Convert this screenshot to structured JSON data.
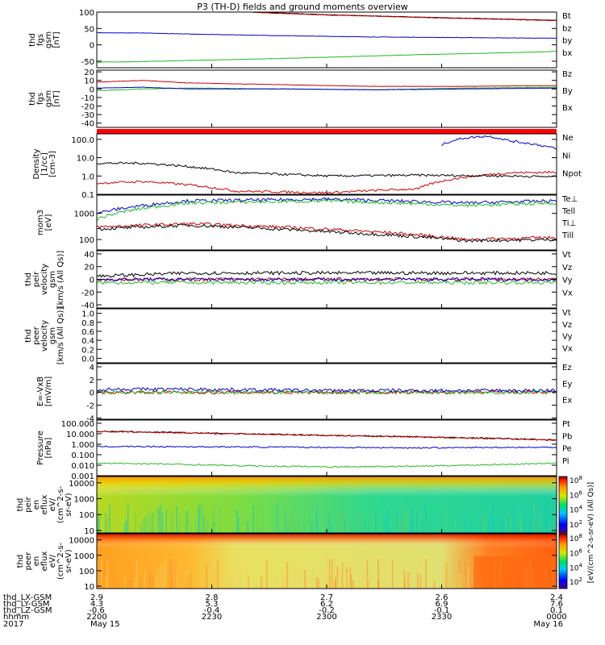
{
  "title": "P3 (TH-D) fields and ground moments overview",
  "chart_data": [
    {
      "type": "line",
      "ylabel": [
        "thd",
        "fgs",
        "gsm",
        "[nT]"
      ],
      "ylim": [
        -70,
        100
      ],
      "yticks": [
        {
          "v": 100,
          "label": "100"
        },
        {
          "v": 50,
          "label": "50"
        },
        {
          "v": 0,
          "label": "0"
        },
        {
          "v": -50,
          "label": "-50"
        }
      ],
      "series": [
        {
          "name": "Bt",
          "color": "#000000",
          "x": [
            0.34,
            0.5,
            0.75,
            1.0
          ],
          "y": [
            100,
            92,
            83,
            75
          ]
        },
        {
          "name": "bz",
          "color": "#cc0000",
          "x": [
            0.34,
            0.5,
            0.75,
            1.0
          ],
          "y": [
            99,
            91,
            82,
            74
          ]
        },
        {
          "name": "by",
          "color": "#22bb22",
          "x": [
            0,
            0.1,
            0.3,
            0.5,
            0.7,
            0.9,
            1.0
          ],
          "y": [
            -53,
            -51,
            -45,
            -38,
            -30,
            -24,
            -20
          ]
        },
        {
          "name": "bx",
          "color": "#0000cc",
          "x": [
            0,
            0.1,
            0.2,
            0.4,
            0.6,
            0.8,
            1.0
          ],
          "y": [
            37,
            36,
            33,
            28,
            24,
            22,
            20
          ]
        }
      ]
    },
    {
      "type": "line",
      "ylabel": [
        "thd",
        "fgs",
        "gsm",
        "[nT]"
      ],
      "ylim": [
        -45,
        22
      ],
      "yticks": [
        {
          "v": 20,
          "label": "20"
        },
        {
          "v": 10,
          "label": "10"
        },
        {
          "v": 0,
          "label": "0"
        },
        {
          "v": -10,
          "label": "-10"
        },
        {
          "v": -20,
          "label": "-20"
        },
        {
          "v": -30,
          "label": "-30"
        },
        {
          "v": -40,
          "label": "-40"
        }
      ],
      "series": [
        {
          "name": "Bz",
          "color": "#cc0000",
          "x": [
            0,
            0.1,
            0.2,
            0.4,
            0.6,
            0.8,
            1.0
          ],
          "y": [
            8,
            10,
            7,
            5,
            3,
            3,
            4
          ]
        },
        {
          "name": "By",
          "color": "#22bb22",
          "x": [
            0,
            0.1,
            0.2,
            0.4,
            0.6,
            0.8,
            1.0
          ],
          "y": [
            -2,
            0,
            1,
            0,
            -1,
            1,
            2
          ]
        },
        {
          "name": "Bx",
          "color": "#0000cc",
          "x": [
            0,
            0.1,
            0.2,
            0.4,
            0.6,
            0.8,
            1.0
          ],
          "y": [
            1,
            2,
            0,
            0,
            -1,
            0,
            1
          ]
        }
      ]
    },
    {
      "type": "line",
      "ylabel": [
        "Density",
        "[1/cc]",
        "[cm-3]"
      ],
      "ylim": [
        0.1,
        200
      ],
      "log": true,
      "yticks": [
        {
          "v": 100,
          "label": "100.0"
        },
        {
          "v": 10,
          "label": "10.0"
        },
        {
          "v": 1,
          "label": "1.0"
        },
        {
          "v": 0.1,
          "label": "0.1"
        }
      ],
      "series": [
        {
          "name": "Ne",
          "color": "#cc0000",
          "x": [
            0,
            0.1,
            0.3,
            0.5,
            0.7,
            0.9,
            1.0
          ],
          "y": [
            0.4,
            0.5,
            0.15,
            0.12,
            0.2,
            1.5,
            1.6
          ]
        },
        {
          "name": "Ni",
          "color": "#000000",
          "x": [
            0,
            0.1,
            0.3,
            0.5,
            0.7,
            0.9,
            1.0
          ],
          "y": [
            5,
            5,
            1.5,
            1.0,
            1.1,
            1.0,
            0.9
          ]
        },
        {
          "name": "Npot",
          "color": "#0000cc",
          "x": [
            0.75,
            0.8,
            0.85,
            0.9,
            1.0
          ],
          "y": [
            50,
            120,
            150,
            80,
            30
          ]
        }
      ]
    },
    {
      "type": "line",
      "ylabel": [
        "mom3",
        "[eV]"
      ],
      "ylim": [
        40,
        5000
      ],
      "log": true,
      "yticks": [
        {
          "v": 1000,
          "label": "1000"
        },
        {
          "v": 100,
          "label": "100"
        }
      ],
      "series": [
        {
          "name": "Te⊥",
          "color": "#cc0000",
          "x": [
            0,
            0.2,
            0.5,
            0.8,
            1.0
          ],
          "y": [
            300,
            400,
            250,
            100,
            120
          ]
        },
        {
          "name": "Tell",
          "color": "#000000",
          "x": [
            0,
            0.2,
            0.5,
            0.8,
            1.0
          ],
          "y": [
            250,
            350,
            200,
            90,
            100
          ]
        },
        {
          "name": "Ti⊥",
          "color": "#0000cc",
          "x": [
            0,
            0.2,
            0.5,
            0.8,
            1.0
          ],
          "y": [
            1000,
            3000,
            3500,
            2500,
            3000
          ]
        },
        {
          "name": "Till",
          "color": "#22bb22",
          "x": [
            0,
            0.2,
            0.5,
            0.8,
            1.0
          ],
          "y": [
            600,
            2500,
            3000,
            2000,
            2500
          ]
        }
      ]
    },
    {
      "type": "line",
      "ylabel": [
        "thd",
        "peir",
        "velocity",
        "gsm",
        "[km/s (All Qs)]"
      ],
      "ylim": [
        -45,
        45
      ],
      "yticks": [
        {
          "v": 40,
          "label": "40"
        },
        {
          "v": 20,
          "label": "20"
        },
        {
          "v": 0,
          "label": "0"
        },
        {
          "v": -20,
          "label": "-20"
        },
        {
          "v": -40,
          "label": "-40"
        }
      ],
      "series": [
        {
          "name": "Vt",
          "color": "#000000",
          "x": [
            0,
            0.2,
            0.5,
            0.8,
            1.0
          ],
          "y": [
            5,
            10,
            10,
            10,
            10
          ]
        },
        {
          "name": "Vz",
          "color": "#cc0000",
          "x": [
            0,
            0.2,
            0.5,
            0.8,
            1.0
          ],
          "y": [
            0,
            0,
            0,
            0,
            0
          ]
        },
        {
          "name": "Vy",
          "color": "#22bb22",
          "x": [
            0,
            0.2,
            0.5,
            0.8,
            1.0
          ],
          "y": [
            -5,
            -5,
            -5,
            -5,
            -5
          ]
        },
        {
          "name": "Vx",
          "color": "#0000cc",
          "x": [
            0,
            0.2,
            0.5,
            0.8,
            1.0
          ],
          "y": [
            0,
            0,
            0,
            0,
            0
          ]
        }
      ]
    },
    {
      "type": "line",
      "ylabel": [
        "thd",
        "peer",
        "velocity",
        "gsm",
        "[km/s (All Qs)]"
      ],
      "ylim": [
        -0.1,
        1.1
      ],
      "yticks": [
        {
          "v": 1.0,
          "label": "1.0"
        },
        {
          "v": 0.8,
          "label": "0.8"
        },
        {
          "v": 0.6,
          "label": "0.6"
        },
        {
          "v": 0.4,
          "label": "0.4"
        },
        {
          "v": 0.2,
          "label": "0.2"
        },
        {
          "v": 0.0,
          "label": "0.0"
        }
      ],
      "series": [
        {
          "name": "Vt",
          "color": "#000000",
          "x": [],
          "y": []
        },
        {
          "name": "Vz",
          "color": "#cc0000",
          "x": [],
          "y": []
        },
        {
          "name": "Vy",
          "color": "#22bb22",
          "x": [],
          "y": []
        },
        {
          "name": "Vx",
          "color": "#0000cc",
          "x": [],
          "y": []
        }
      ]
    },
    {
      "type": "line",
      "ylabel": [
        "E=-VxB",
        "[mV/m]"
      ],
      "ylim": [
        -4.2,
        4.5
      ],
      "yticks": [
        {
          "v": 4,
          "label": "4"
        },
        {
          "v": 2,
          "label": "2"
        },
        {
          "v": 0,
          "label": "0"
        },
        {
          "v": -2,
          "label": "-2"
        },
        {
          "v": -4,
          "label": "-4"
        }
      ],
      "series": [
        {
          "name": "Ez",
          "color": "#cc0000",
          "x": [
            0,
            0.2,
            0.5,
            0.8,
            1.0
          ],
          "y": [
            0,
            0,
            0,
            0,
            0
          ]
        },
        {
          "name": "Ey",
          "color": "#22bb22",
          "x": [
            0,
            0.2,
            0.5,
            0.8,
            1.0
          ],
          "y": [
            0,
            0,
            0,
            0,
            0
          ]
        },
        {
          "name": "Ex",
          "color": "#0000cc",
          "x": [
            0,
            0.2,
            0.5,
            0.8,
            1.0
          ],
          "y": [
            0.5,
            0.5,
            0.3,
            0.3,
            0.3
          ]
        }
      ]
    },
    {
      "type": "line",
      "ylabel": [
        "Pressure",
        "[nPa]"
      ],
      "ylim": [
        0.001,
        200
      ],
      "log": true,
      "yticks": [
        {
          "v": 100,
          "label": "100.000"
        },
        {
          "v": 10,
          "label": "10.000"
        },
        {
          "v": 1,
          "label": "1.000"
        },
        {
          "v": 0.1,
          "label": "0.100"
        },
        {
          "v": 0.01,
          "label": "0.010"
        },
        {
          "v": 0.001,
          "label": "0.001"
        }
      ],
      "series": [
        {
          "name": "Pt",
          "color": "#000000",
          "x": [
            0,
            0.25,
            0.5,
            0.75,
            1.0
          ],
          "y": [
            17,
            11,
            7,
            4.5,
            2.5
          ]
        },
        {
          "name": "Pb",
          "color": "#cc0000",
          "x": [
            0,
            0.25,
            0.5,
            0.75,
            1.0
          ],
          "y": [
            16.5,
            10.5,
            6.8,
            4.3,
            2.4
          ]
        },
        {
          "name": "Pe",
          "color": "#22bb22",
          "x": [
            0,
            0.1,
            0.3,
            0.5,
            0.7,
            0.9,
            1.0
          ],
          "y": [
            0.015,
            0.014,
            0.009,
            0.007,
            0.008,
            0.012,
            0.016
          ]
        },
        {
          "name": "Pi",
          "color": "#0000cc",
          "x": [
            0,
            0.1,
            0.3,
            0.5,
            0.7,
            0.9,
            1.0
          ],
          "y": [
            0.6,
            0.6,
            0.55,
            0.5,
            0.45,
            0.5,
            0.5
          ]
        }
      ]
    },
    {
      "type": "heatmap",
      "ylabel": [
        "thd",
        "peir",
        "en",
        "eflux",
        "eV/",
        "(cm^2-s-",
        "sr-eV)"
      ],
      "ylim": [
        7,
        25000
      ],
      "log": true,
      "yticks": [
        {
          "v": 10000,
          "label": "10000"
        },
        {
          "v": 1000,
          "label": "1000"
        },
        {
          "v": 100,
          "label": "100"
        },
        {
          "v": 10,
          "label": "10"
        }
      ]
    },
    {
      "type": "heatmap",
      "ylabel": [
        "thd",
        "peer",
        "en",
        "eflux",
        "eV/",
        "(cm^2-s-",
        "sr-eV)"
      ],
      "ylim": [
        7,
        25000
      ],
      "log": true,
      "yticks": [
        {
          "v": 10000,
          "label": "10000"
        },
        {
          "v": 1000,
          "label": "1000"
        },
        {
          "v": 100,
          "label": "100"
        },
        {
          "v": 10,
          "label": "10"
        }
      ]
    }
  ],
  "colorbar": {
    "label": "[eV/(cm^2-s-sr-eV) (All Qs)]",
    "ticks": [
      {
        "exp": "8",
        "frac": 0.0
      },
      {
        "exp": "6",
        "frac": 0.14
      },
      {
        "exp": "4",
        "frac": 0.28
      },
      {
        "exp": "2",
        "frac": 0.42
      },
      {
        "exp": "8",
        "frac": 0.55
      },
      {
        "exp": "6",
        "frac": 0.69
      },
      {
        "exp": "4",
        "frac": 0.83
      },
      {
        "exp": "2",
        "frac": 0.96
      }
    ]
  },
  "xaxis": {
    "row_labels": [
      "thd_LX-GSM",
      "thd_LY-GSM",
      "thd_LZ-GSM",
      "hhmm",
      "2017"
    ],
    "ticks": [
      {
        "frac": 0.0,
        "values": [
          "2.9",
          "4.3",
          "-0.6",
          "2200",
          "May 15"
        ]
      },
      {
        "frac": 0.25,
        "values": [
          "2.8",
          "5.3",
          "-0.4",
          "2230",
          ""
        ]
      },
      {
        "frac": 0.5,
        "values": [
          "2.7",
          "6.2",
          "-0.2",
          "2300",
          ""
        ]
      },
      {
        "frac": 0.75,
        "values": [
          "2.6",
          "6.9",
          "-0.1",
          "2330",
          ""
        ]
      },
      {
        "frac": 1.0,
        "values": [
          "2.4",
          "7.6",
          "0.1",
          "0000",
          "May 16"
        ]
      }
    ]
  }
}
